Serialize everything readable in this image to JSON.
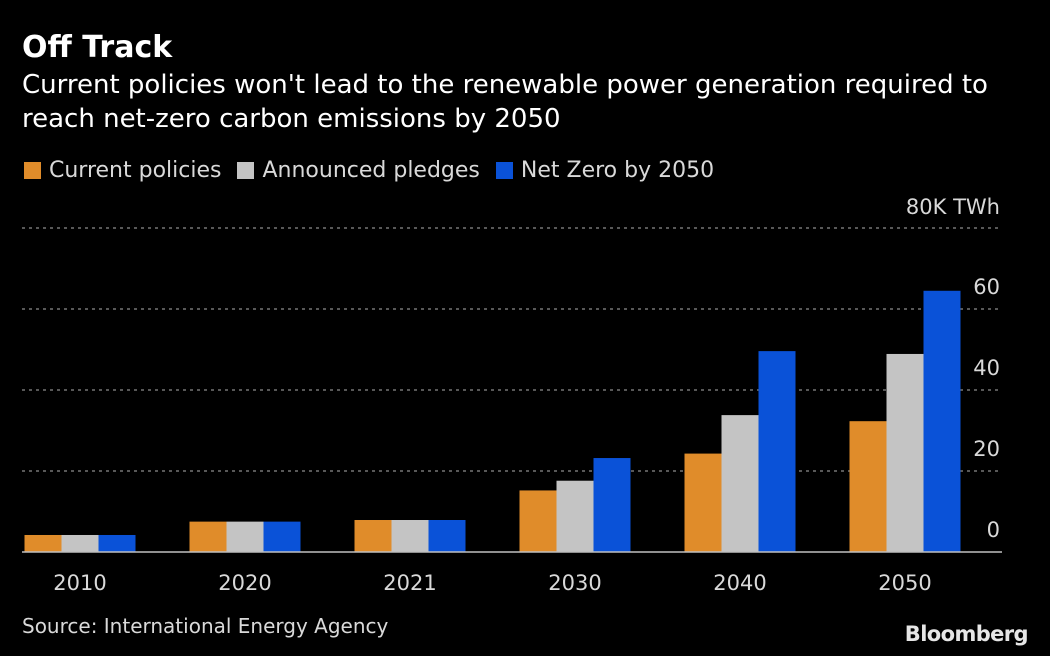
{
  "chart_data": {
    "type": "bar",
    "title": "Off Track",
    "subtitle": "Current policies won't lead to the renewable power generation required to reach net-zero carbon emissions by 2050",
    "categories": [
      "2010",
      "2020",
      "2021",
      "2030",
      "2040",
      "2050"
    ],
    "series": [
      {
        "name": "Current policies",
        "color": "#e08c2a",
        "values": [
          4.2,
          7.5,
          7.9,
          15.2,
          24.3,
          32.3
        ]
      },
      {
        "name": "Announced pledges",
        "color": "#c4c4c4",
        "values": [
          4.2,
          7.5,
          7.9,
          17.6,
          33.8,
          48.9
        ]
      },
      {
        "name": "Net Zero by 2050",
        "color": "#0a52d8",
        "values": [
          4.2,
          7.5,
          7.9,
          23.2,
          49.6,
          64.5
        ]
      }
    ],
    "y_ticks": [
      {
        "value": 0,
        "label": "0"
      },
      {
        "value": 20,
        "label": "20"
      },
      {
        "value": 40,
        "label": "40"
      },
      {
        "value": 60,
        "label": "60"
      },
      {
        "value": 80,
        "label": "80K TWh"
      }
    ],
    "ylim": [
      0,
      80
    ],
    "xlabel": "",
    "ylabel": "",
    "grid": true,
    "legend": "top-left"
  },
  "footer": {
    "source": "Source: International Energy Agency",
    "brand": "Bloomberg"
  }
}
